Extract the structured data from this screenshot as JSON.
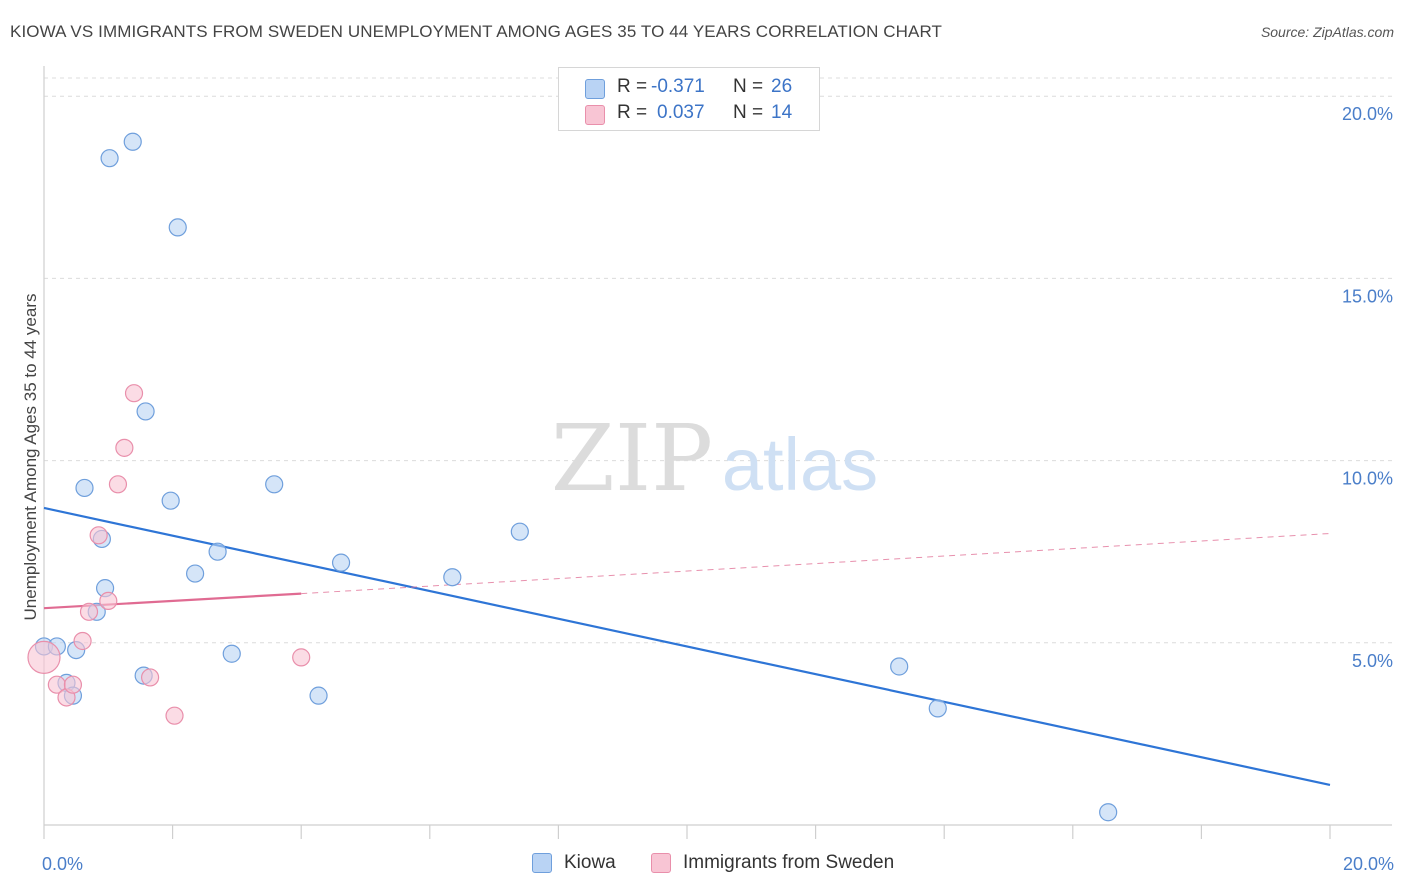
{
  "header": {
    "title": "KIOWA VS IMMIGRANTS FROM SWEDEN UNEMPLOYMENT AMONG AGES 35 TO 44 YEARS CORRELATION CHART",
    "source": "Source: ZipAtlas.com"
  },
  "watermark": {
    "zip": "ZIP",
    "atlas": "atlas"
  },
  "legend": {
    "r_label": "R =",
    "n_label": "N =",
    "kiowa": {
      "r": "-0.371",
      "n": "26"
    },
    "sweden": {
      "r": "0.037",
      "n": "14"
    }
  },
  "colors": {
    "kiowa_fill": "#b9d3f4",
    "kiowa_stroke": "#6f9fdc",
    "kiowa_line": "#2e75d6",
    "sweden_fill": "#f8c5d4",
    "sweden_stroke": "#e98fab",
    "sweden_line": "#e06b92",
    "tick_text": "#4a7ec9",
    "grid": "#dcdcdc"
  },
  "chart_data": {
    "type": "scatter",
    "title": "KIOWA VS IMMIGRANTS FROM SWEDEN UNEMPLOYMENT AMONG AGES 35 TO 44 YEARS CORRELATION CHART",
    "xlabel": "",
    "ylabel": "Unemployment Among Ages 35 to 44 years",
    "xlim": [
      0,
      20
    ],
    "ylim": [
      0,
      20.5
    ],
    "x_ticks": [
      {
        "value": 0,
        "label": "0.0%"
      },
      {
        "value": 20,
        "label": "20.0%"
      }
    ],
    "y_ticks": [
      {
        "value": 5,
        "label": "5.0%"
      },
      {
        "value": 10,
        "label": "10.0%"
      },
      {
        "value": 15,
        "label": "15.0%"
      },
      {
        "value": 20,
        "label": "20.0%"
      }
    ],
    "series": [
      {
        "name": "Kiowa",
        "points": [
          {
            "x": 0.0,
            "y": 4.9
          },
          {
            "x": 0.2,
            "y": 4.9
          },
          {
            "x": 0.35,
            "y": 3.9
          },
          {
            "x": 0.45,
            "y": 3.55
          },
          {
            "x": 0.5,
            "y": 4.8
          },
          {
            "x": 0.63,
            "y": 9.25
          },
          {
            "x": 0.82,
            "y": 5.85
          },
          {
            "x": 0.9,
            "y": 7.85
          },
          {
            "x": 0.95,
            "y": 6.5
          },
          {
            "x": 1.02,
            "y": 18.3
          },
          {
            "x": 1.38,
            "y": 18.75
          },
          {
            "x": 1.55,
            "y": 4.1
          },
          {
            "x": 1.58,
            "y": 11.35
          },
          {
            "x": 1.97,
            "y": 8.9
          },
          {
            "x": 2.08,
            "y": 16.4
          },
          {
            "x": 2.35,
            "y": 6.9
          },
          {
            "x": 2.7,
            "y": 7.5
          },
          {
            "x": 2.92,
            "y": 4.7
          },
          {
            "x": 3.58,
            "y": 9.35
          },
          {
            "x": 4.27,
            "y": 3.55
          },
          {
            "x": 4.62,
            "y": 7.2
          },
          {
            "x": 6.35,
            "y": 6.8
          },
          {
            "x": 7.4,
            "y": 8.05
          },
          {
            "x": 13.3,
            "y": 4.35
          },
          {
            "x": 13.9,
            "y": 3.2
          },
          {
            "x": 16.55,
            "y": 0.35
          }
        ],
        "trend": {
          "x": [
            0,
            20
          ],
          "y": [
            8.7,
            1.1
          ],
          "style": "solid"
        }
      },
      {
        "name": "Immigrants from Sweden",
        "points": [
          {
            "x": 0.0,
            "y": 4.6
          },
          {
            "x": 0.2,
            "y": 3.85
          },
          {
            "x": 0.35,
            "y": 3.5
          },
          {
            "x": 0.45,
            "y": 3.85
          },
          {
            "x": 0.6,
            "y": 5.05
          },
          {
            "x": 0.7,
            "y": 5.85
          },
          {
            "x": 0.85,
            "y": 7.95
          },
          {
            "x": 1.0,
            "y": 6.15
          },
          {
            "x": 1.15,
            "y": 9.35
          },
          {
            "x": 1.25,
            "y": 10.35
          },
          {
            "x": 1.4,
            "y": 11.85
          },
          {
            "x": 1.65,
            "y": 4.05
          },
          {
            "x": 2.03,
            "y": 3.0
          },
          {
            "x": 4.0,
            "y": 4.6
          }
        ],
        "trend": {
          "x": [
            0,
            4.0
          ],
          "y": [
            5.95,
            6.35
          ],
          "style": "solid"
        },
        "trend_extension": {
          "x": [
            4.0,
            20
          ],
          "y": [
            6.35,
            8.0
          ],
          "style": "dashed"
        }
      }
    ],
    "legend": [
      "Kiowa",
      "Immigrants from Sweden"
    ],
    "grid": true
  }
}
